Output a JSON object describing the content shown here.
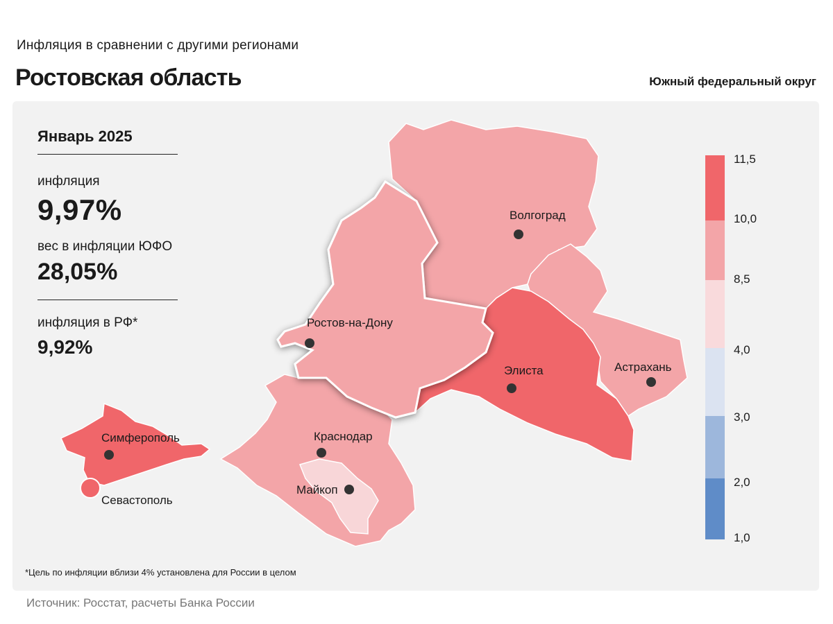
{
  "header": {
    "subtitle": "Инфляция  в сравнении  с другими  регионами",
    "title": "Ростовская область",
    "district": "Южный федеральный округ"
  },
  "stats": {
    "period": "Январь 2025",
    "inflation_label": "инфляция",
    "inflation_value": "9,97%",
    "weight_label": "вес в инфляции  ЮФО",
    "weight_value": "28,05%",
    "rf_label": "инфляция  в РФ*",
    "rf_value": "9,92%"
  },
  "map": {
    "cities": {
      "volgograd": "Волгоград",
      "rostov": "Ростов-на-Дону",
      "elista": "Элиста",
      "astrakhan": "Астрахань",
      "krasnodar": "Краснодар",
      "maykop": "Майкоп",
      "simferopol": "Симферополь",
      "sevastopol": "Севастополь"
    },
    "colors": {
      "high": "#f0666a",
      "mid": "#f3a5a8",
      "low": "#f8d6d8",
      "highlight_border": "#ffffff"
    }
  },
  "legend": {
    "ticks": [
      "11,5",
      "10,0",
      "8,5",
      "4,0",
      "3,0",
      "2,0",
      "1,0"
    ],
    "bins": [
      {
        "from": 10.0,
        "to": 11.5,
        "color": "#f0666a"
      },
      {
        "from": 8.5,
        "to": 10.0,
        "color": "#f3a5a8"
      },
      {
        "from": 4.0,
        "to": 8.5,
        "color": "#f9dadc"
      },
      {
        "from": 3.0,
        "to": 4.0,
        "color": "#dbe3f1"
      },
      {
        "from": 2.0,
        "to": 3.0,
        "color": "#9db7dc"
      },
      {
        "from": 1.0,
        "to": 2.0,
        "color": "#5f8cc8"
      }
    ]
  },
  "footnote": "*Цель по инфляции вблизи 4% установлена для России в целом",
  "source": "Источник: Росстат, расчеты Банка России"
}
